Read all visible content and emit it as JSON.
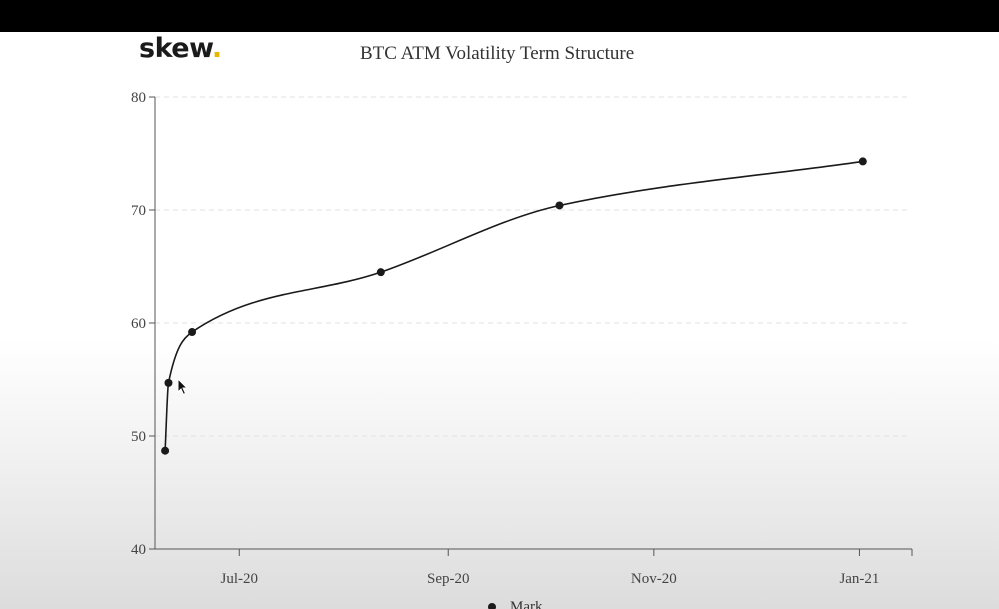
{
  "brand": {
    "logo_text": "skew",
    "logo_dot": ".",
    "dot_color": "#e6b800"
  },
  "chart_data": {
    "type": "line",
    "title": "BTC ATM Volatility Term Structure",
    "xlabel": "",
    "ylabel": "",
    "x_axis": {
      "type": "date",
      "range": [
        "2020-06-06",
        "2021-01-16"
      ],
      "ticks": [
        {
          "date": "2020-07-01",
          "label": "Jul-20"
        },
        {
          "date": "2020-09-01",
          "label": "Sep-20"
        },
        {
          "date": "2020-11-01",
          "label": "Nov-20"
        },
        {
          "date": "2021-01-01",
          "label": "Jan-21"
        }
      ]
    },
    "y_axis": {
      "range": [
        40,
        80
      ],
      "ticks": [
        40,
        50,
        60,
        70,
        80
      ],
      "grid": true
    },
    "series": [
      {
        "name": "Mark",
        "color": "#1a1a1a",
        "points": [
          {
            "date": "2020-06-09",
            "y": 48.7
          },
          {
            "date": "2020-06-10",
            "y": 54.7
          },
          {
            "date": "2020-06-17",
            "y": 59.2
          },
          {
            "date": "2020-08-12",
            "y": 64.5
          },
          {
            "date": "2020-10-04",
            "y": 70.4
          },
          {
            "date": "2021-01-02",
            "y": 74.3
          }
        ]
      }
    ],
    "legend": {
      "placement": "bottom"
    }
  }
}
